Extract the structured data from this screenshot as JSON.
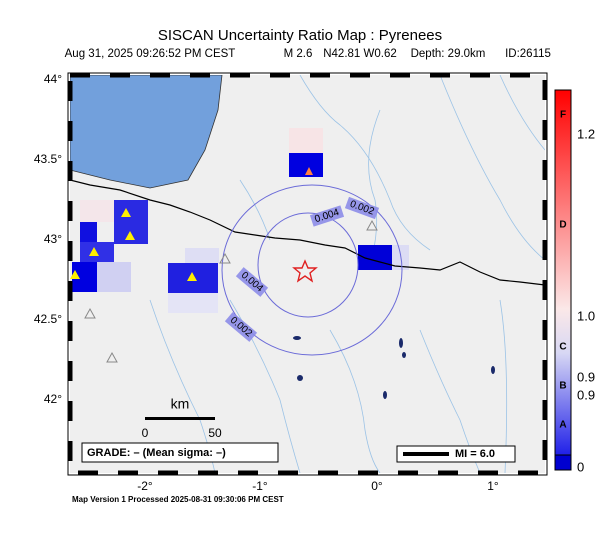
{
  "header": {
    "title": "SISCAN Uncertainty Ratio Map : Pyrenees",
    "details": [
      "Aug 31, 2025 09:26:52 PM CEST",
      "M 2.6",
      "N42.81 W0.62",
      "Depth: 29.0km",
      "ID:26115"
    ]
  },
  "map": {
    "lat_labels": [
      "44°",
      "43.5°",
      "43°",
      "42.5°",
      "42°"
    ],
    "lon_labels": [
      "-2°",
      "-1°",
      "0°",
      "1°"
    ],
    "contour_labels": [
      "0.004",
      "0.002",
      "0.004",
      "0.002"
    ],
    "scale": {
      "unit": "km",
      "start": "0",
      "end": "50"
    },
    "grade": "GRADE: – (Mean sigma: –)",
    "mi": "MI = 6.0"
  },
  "colorbar": {
    "letters": [
      "F",
      "D",
      "C",
      "B",
      "A"
    ],
    "numbers": [
      "1.2",
      "1.0",
      "0.9",
      "0.9",
      "0"
    ]
  },
  "footer": "Map Version 1 Processed 2025-08-31 09:30:06 PM CEST"
}
